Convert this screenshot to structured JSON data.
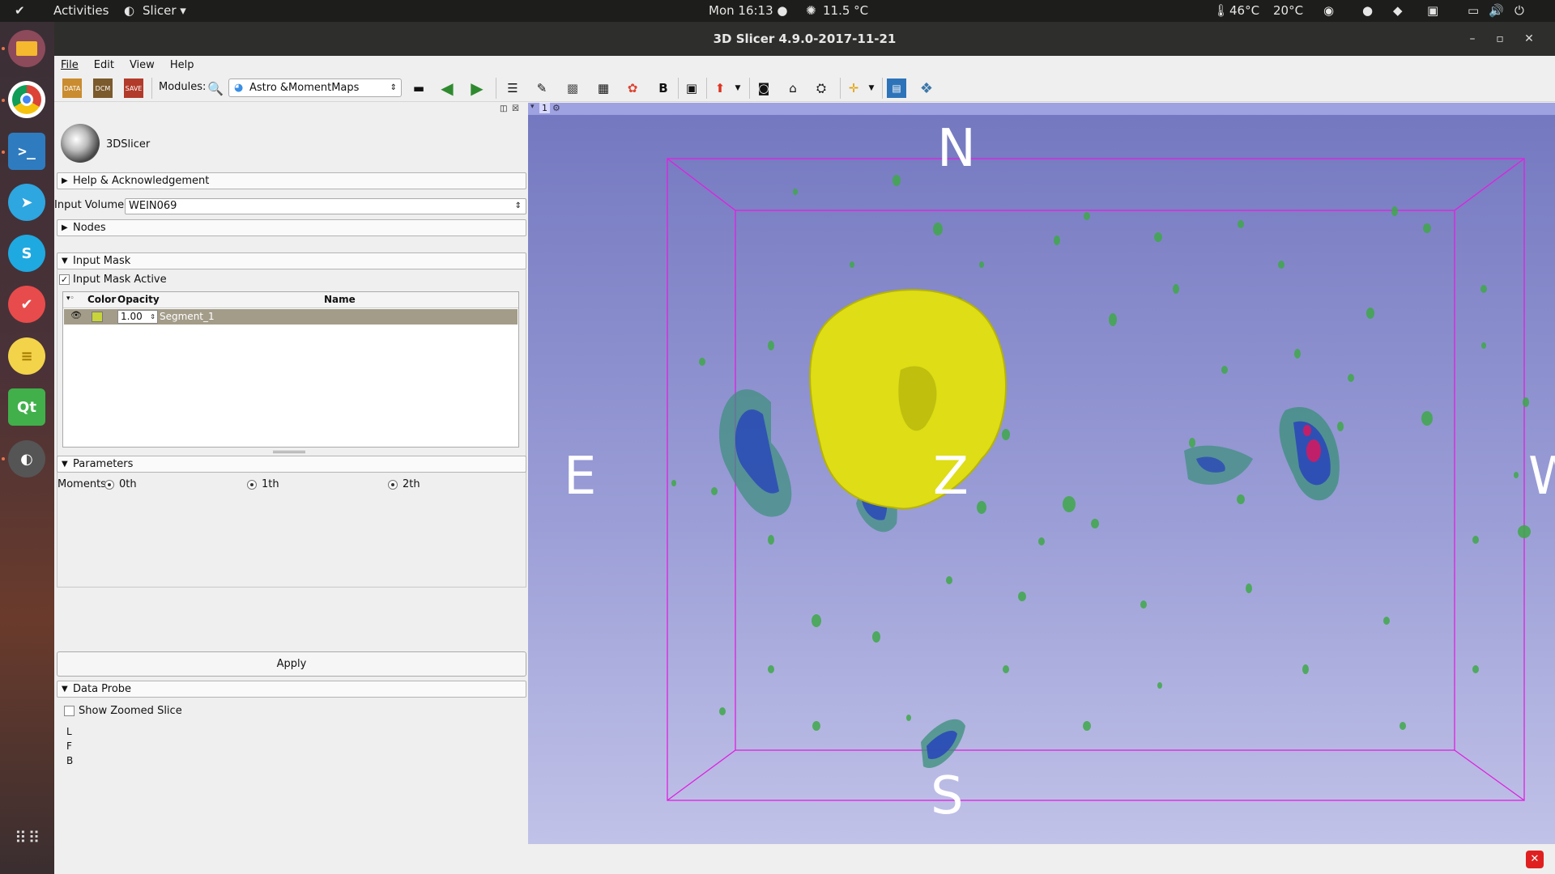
{
  "topbar": {
    "activities": "Activities",
    "app_menu": "Slicer ▾",
    "clock": "Mon 16:13 ●",
    "weather": "11.5 °C",
    "cpu_temp": "46°C",
    "temp2": "20°C"
  },
  "window": {
    "title": "3D Slicer 4.9.0-2017-11-21"
  },
  "menu": {
    "file": "File",
    "edit": "Edit",
    "view": "View",
    "help": "Help"
  },
  "toolbar": {
    "modules_label": "Modules:",
    "module_selected": "Astro &MomentMaps"
  },
  "panel": {
    "logo_text": "3DSlicer",
    "help_section": "Help & Acknowledgement",
    "input_volume_label": "Input Volume:",
    "input_volume_value": "WEIN069",
    "nodes_section": "Nodes",
    "input_mask_section": "Input Mask",
    "input_mask_active": "Input Mask Active",
    "table": {
      "headers": [
        "Color",
        "Opacity",
        "Name"
      ],
      "rows": [
        {
          "color": "#c8d43a",
          "opacity": "1.00",
          "name": "Segment_1"
        }
      ]
    },
    "parameters_section": "Parameters",
    "moments_label": "Moments:",
    "moments": [
      "0th",
      "1th",
      "2th"
    ],
    "apply": "Apply",
    "data_probe_section": "Data Probe",
    "show_zoomed_slice": "Show Zoomed Slice",
    "probe_lines": [
      "L",
      "F",
      "B"
    ]
  },
  "viewer": {
    "view_number": "1",
    "orientation": {
      "top": "N",
      "bottom": "S",
      "left": "E",
      "right": "W",
      "center": "Z"
    }
  }
}
